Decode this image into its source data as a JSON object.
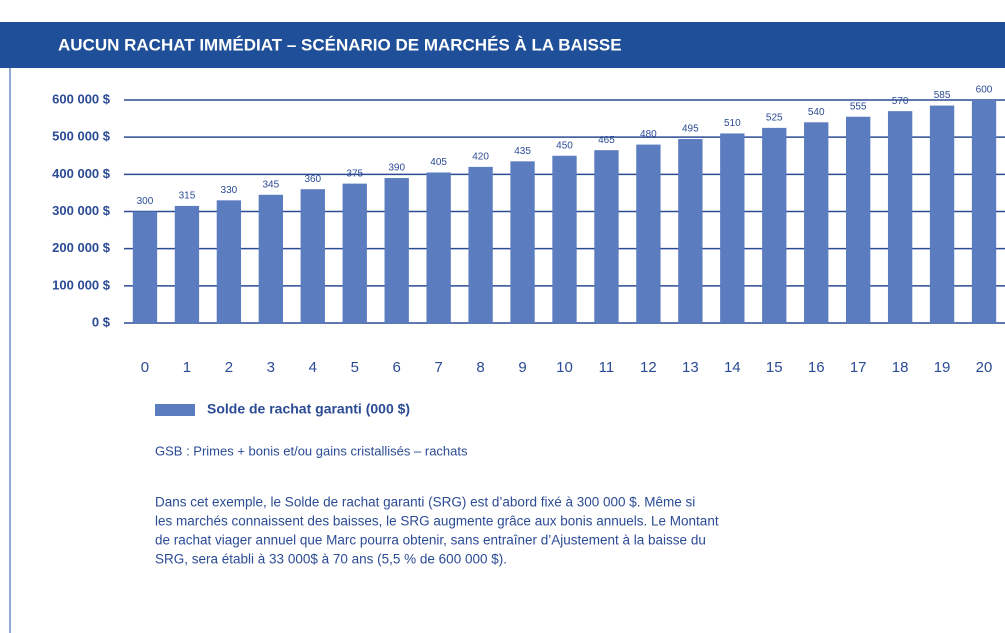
{
  "chart_data": {
    "type": "bar",
    "title": "AUCUN RACHAT IMMÉDIAT – SCÉNARIO DE MARCHÉS À LA BAISSE",
    "categories": [
      "0",
      "1",
      "2",
      "3",
      "4",
      "5",
      "6",
      "7",
      "8",
      "9",
      "10",
      "11",
      "12",
      "13",
      "14",
      "15",
      "16",
      "17",
      "18",
      "19",
      "20"
    ],
    "series": [
      {
        "name": "Solde de rachat garanti (000 $)",
        "color": "#5b7cbf",
        "values": [
          300000,
          315000,
          330000,
          345000,
          360000,
          375000,
          390000,
          405000,
          420000,
          435000,
          450000,
          465000,
          480000,
          495000,
          510000,
          525000,
          540000,
          555000,
          570000,
          585000,
          600000
        ],
        "value_labels": [
          "300",
          "315",
          "330",
          "345",
          "360",
          "375",
          "390",
          "405",
          "420",
          "435",
          "450",
          "465",
          "480",
          "495",
          "510",
          "525",
          "540",
          "555",
          "570",
          "585",
          "600"
        ]
      }
    ],
    "ylim": [
      0,
      600000
    ],
    "yticks": [
      {
        "value": 0,
        "label": "0 $"
      },
      {
        "value": 100000,
        "label": "100 000 $"
      },
      {
        "value": 200000,
        "label": "200 000 $"
      },
      {
        "value": 300000,
        "label": "300 000 $"
      },
      {
        "value": 400000,
        "label": "400 000 $"
      },
      {
        "value": 500000,
        "label": "500 000 $"
      },
      {
        "value": 600000,
        "label": "600 000 $"
      }
    ],
    "grid": true,
    "note": "GSB : Primes + bonis et/ou gains cristallisés – rachats",
    "description": [
      "Dans cet exemple, le Solde de rachat garanti (SRG) est d’abord fixé à 300 000 $. Même si",
      "les marchés connaissent des baisses, le SRG augmente grâce aux bonis annuels. Le Montant",
      "de rachat viager annuel que Marc pourra obtenir, sans entraîner d’Ajustement à la baisse du",
      "SRG, sera établi à 33 000$ à 70 ans (5,5 % de 600 000 $)."
    ]
  }
}
